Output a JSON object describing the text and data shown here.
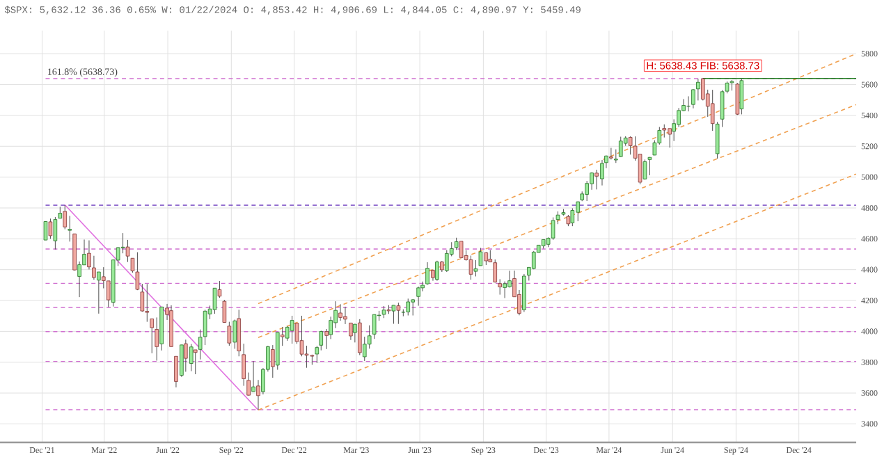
{
  "chart_data": {
    "type": "candlestick",
    "title": "$SPX: 5,632.12 36.36 0.65% W: 01/22/2024 O: 4,853.42 H: 4,906.69 L: 4,844.05 C: 4,890.97 Y: 5459.49",
    "xlim": [
      "2021-10-01",
      "2025-02-22"
    ],
    "xticks": [
      {
        "value": "2021-12-01",
        "label": "Dec '21"
      },
      {
        "value": "2022-03-01",
        "label": "Mar '22"
      },
      {
        "value": "2022-06-01",
        "label": "Jun '22"
      },
      {
        "value": "2022-09-01",
        "label": "Sep '22"
      },
      {
        "value": "2022-12-01",
        "label": "Dec '22"
      },
      {
        "value": "2023-03-01",
        "label": "Mar '23"
      },
      {
        "value": "2023-06-01",
        "label": "Jun '23"
      },
      {
        "value": "2023-09-01",
        "label": "Sep '23"
      },
      {
        "value": "2023-12-01",
        "label": "Dec '23"
      },
      {
        "value": "2024-03-01",
        "label": "Mar '24"
      },
      {
        "value": "2024-06-01",
        "label": "Jun '24"
      },
      {
        "value": "2024-09-01",
        "label": "Sep '24"
      },
      {
        "value": "2024-12-01",
        "label": "Dec '24"
      }
    ],
    "ylim": [
      3280,
      5950
    ],
    "yticks": [
      3400,
      3600,
      3800,
      4000,
      4200,
      4400,
      4600,
      4800,
      5000,
      5200,
      5400,
      5600,
      5800
    ],
    "grid": true,
    "x": [
      "2021-12-06",
      "2021-12-13",
      "2021-12-20",
      "2021-12-27",
      "2022-01-03",
      "2022-01-10",
      "2022-01-17",
      "2022-01-24",
      "2022-01-31",
      "2022-02-07",
      "2022-02-14",
      "2022-02-21",
      "2022-02-28",
      "2022-03-07",
      "2022-03-14",
      "2022-03-21",
      "2022-03-28",
      "2022-04-04",
      "2022-04-11",
      "2022-04-18",
      "2022-04-25",
      "2022-05-02",
      "2022-05-09",
      "2022-05-16",
      "2022-05-23",
      "2022-05-31",
      "2022-06-06",
      "2022-06-13",
      "2022-06-21",
      "2022-06-27",
      "2022-07-05",
      "2022-07-11",
      "2022-07-18",
      "2022-07-25",
      "2022-08-01",
      "2022-08-08",
      "2022-08-15",
      "2022-08-22",
      "2022-08-29",
      "2022-09-06",
      "2022-09-12",
      "2022-09-19",
      "2022-09-26",
      "2022-10-03",
      "2022-10-10",
      "2022-10-17",
      "2022-10-24",
      "2022-10-31",
      "2022-11-07",
      "2022-11-14",
      "2022-11-21",
      "2022-11-28",
      "2022-12-05",
      "2022-12-12",
      "2022-12-19",
      "2022-12-27",
      "2023-01-03",
      "2023-01-09",
      "2023-01-17",
      "2023-01-23",
      "2023-01-30",
      "2023-02-06",
      "2023-02-13",
      "2023-02-21",
      "2023-02-27",
      "2023-03-06",
      "2023-03-13",
      "2023-03-20",
      "2023-03-27",
      "2023-04-03",
      "2023-04-10",
      "2023-04-17",
      "2023-04-24",
      "2023-05-01",
      "2023-05-08",
      "2023-05-15",
      "2023-05-22",
      "2023-05-30",
      "2023-06-05",
      "2023-06-12",
      "2023-06-20",
      "2023-06-26",
      "2023-07-03",
      "2023-07-10",
      "2023-07-17",
      "2023-07-24",
      "2023-07-31",
      "2023-08-07",
      "2023-08-14",
      "2023-08-21",
      "2023-08-28",
      "2023-09-05",
      "2023-09-11",
      "2023-09-18",
      "2023-09-25",
      "2023-10-02",
      "2023-10-09",
      "2023-10-16",
      "2023-10-23",
      "2023-10-30",
      "2023-11-06",
      "2023-11-13",
      "2023-11-20",
      "2023-11-27",
      "2023-12-04",
      "2023-12-11",
      "2023-12-18",
      "2023-12-26",
      "2024-01-02",
      "2024-01-08",
      "2024-01-16",
      "2024-01-22",
      "2024-01-29",
      "2024-02-05",
      "2024-02-12",
      "2024-02-20",
      "2024-02-26",
      "2024-03-04",
      "2024-03-11",
      "2024-03-18",
      "2024-03-25",
      "2024-04-01",
      "2024-04-08",
      "2024-04-15",
      "2024-04-22",
      "2024-04-29",
      "2024-05-06",
      "2024-05-13",
      "2024-05-20",
      "2024-05-28",
      "2024-06-03",
      "2024-06-10",
      "2024-06-17",
      "2024-06-24",
      "2024-07-01",
      "2024-07-08",
      "2024-07-15",
      "2024-07-22",
      "2024-07-29",
      "2024-08-05",
      "2024-08-12",
      "2024-08-19",
      "2024-08-26",
      "2024-09-03",
      "2024-09-09"
    ],
    "ohlc": [
      [
        4592,
        4713,
        4592,
        4712
      ],
      [
        4710,
        4731,
        4600,
        4620
      ],
      [
        4587,
        4741,
        4531,
        4725
      ],
      [
        4733,
        4808,
        4733,
        4766
      ],
      [
        4778,
        4818,
        4662,
        4677
      ],
      [
        4655,
        4749,
        4582,
        4662
      ],
      [
        4632,
        4632,
        4395,
        4398
      ],
      [
        4356,
        4453,
        4222,
        4432
      ],
      [
        4431,
        4595,
        4431,
        4500
      ],
      [
        4506,
        4590,
        4401,
        4418
      ],
      [
        4412,
        4490,
        4335,
        4349
      ],
      [
        4332,
        4385,
        4115,
        4385
      ],
      [
        4354,
        4416,
        4279,
        4329
      ],
      [
        4327,
        4327,
        4157,
        4204
      ],
      [
        4188,
        4465,
        4161,
        4463
      ],
      [
        4462,
        4546,
        4424,
        4543
      ],
      [
        4541,
        4637,
        4506,
        4546
      ],
      [
        4547,
        4593,
        4450,
        4488
      ],
      [
        4474,
        4474,
        4381,
        4392
      ],
      [
        4385,
        4513,
        4267,
        4272
      ],
      [
        4255,
        4308,
        4128,
        4132
      ],
      [
        4130,
        4307,
        4062,
        4123
      ],
      [
        4081,
        4082,
        3858,
        4024
      ],
      [
        4013,
        4090,
        3810,
        3901
      ],
      [
        3919,
        4158,
        3876,
        4158
      ],
      [
        4151,
        4178,
        4074,
        4109
      ],
      [
        4134,
        4169,
        3900,
        3901
      ],
      [
        3838,
        3838,
        3637,
        3675
      ],
      [
        3715,
        3913,
        3705,
        3912
      ],
      [
        3920,
        3946,
        3738,
        3825
      ],
      [
        3792,
        3918,
        3742,
        3899
      ],
      [
        3880,
        3880,
        3722,
        3863
      ],
      [
        3883,
        4012,
        3818,
        3962
      ],
      [
        3966,
        4140,
        3911,
        4131
      ],
      [
        4113,
        4167,
        4079,
        4145
      ],
      [
        4141,
        4280,
        4114,
        4280
      ],
      [
        4270,
        4326,
        4218,
        4228
      ],
      [
        4195,
        4204,
        4057,
        4058
      ],
      [
        4034,
        4062,
        3907,
        3924
      ],
      [
        3930,
        4076,
        3887,
        4068
      ],
      [
        4083,
        4140,
        3838,
        3873
      ],
      [
        3849,
        3920,
        3647,
        3693
      ],
      [
        3682,
        3733,
        3584,
        3586
      ],
      [
        3610,
        3807,
        3610,
        3640
      ],
      [
        3646,
        3685,
        3492,
        3583
      ],
      [
        3609,
        3762,
        3591,
        3753
      ],
      [
        3753,
        3906,
        3739,
        3901
      ],
      [
        3882,
        3911,
        3699,
        3771
      ],
      [
        3781,
        3993,
        3751,
        3993
      ],
      [
        3977,
        4028,
        3906,
        3965
      ],
      [
        3956,
        4034,
        3939,
        4027
      ],
      [
        4005,
        4101,
        3920,
        4071
      ],
      [
        4053,
        4053,
        3919,
        3934
      ],
      [
        3940,
        4101,
        3838,
        3852
      ],
      [
        3853,
        3907,
        3764,
        3845
      ],
      [
        3844,
        3849,
        3783,
        3839
      ],
      [
        3853,
        3906,
        3795,
        3895
      ],
      [
        3910,
        4004,
        3877,
        3999
      ],
      [
        3999,
        4015,
        3885,
        3973
      ],
      [
        3979,
        4095,
        3950,
        4071
      ],
      [
        4056,
        4195,
        4021,
        4136
      ],
      [
        4119,
        4176,
        4069,
        4090
      ],
      [
        4096,
        4160,
        4047,
        4079
      ],
      [
        4054,
        4054,
        3944,
        3970
      ],
      [
        3992,
        4048,
        3928,
        4046
      ],
      [
        4055,
        4079,
        3846,
        3862
      ],
      [
        3835,
        3965,
        3808,
        3917
      ],
      [
        3917,
        4039,
        3888,
        3971
      ],
      [
        3982,
        4110,
        3951,
        4109
      ],
      [
        4102,
        4133,
        4069,
        4105
      ],
      [
        4110,
        4164,
        4086,
        4138
      ],
      [
        4140,
        4170,
        4113,
        4133
      ],
      [
        4132,
        4170,
        4049,
        4169
      ],
      [
        4166,
        4186,
        4048,
        4136
      ],
      [
        4124,
        4143,
        4098,
        4124
      ],
      [
        4126,
        4212,
        4103,
        4191
      ],
      [
        4190,
        4209,
        4103,
        4205
      ],
      [
        4226,
        4290,
        4166,
        4282
      ],
      [
        4282,
        4323,
        4260,
        4299
      ],
      [
        4308,
        4448,
        4302,
        4409
      ],
      [
        4396,
        4400,
        4328,
        4348
      ],
      [
        4337,
        4458,
        4328,
        4450
      ],
      [
        4450,
        4456,
        4385,
        4399
      ],
      [
        4394,
        4527,
        4385,
        4505
      ],
      [
        4500,
        4578,
        4487,
        4536
      ],
      [
        4544,
        4607,
        4528,
        4582
      ],
      [
        4584,
        4584,
        4474,
        4478
      ],
      [
        4491,
        4527,
        4458,
        4464
      ],
      [
        4464,
        4491,
        4335,
        4370
      ],
      [
        4389,
        4462,
        4356,
        4406
      ],
      [
        4426,
        4541,
        4426,
        4516
      ],
      [
        4510,
        4514,
        4430,
        4457
      ],
      [
        4468,
        4527,
        4449,
        4450
      ],
      [
        4445,
        4466,
        4316,
        4320
      ],
      [
        4310,
        4338,
        4238,
        4288
      ],
      [
        4284,
        4324,
        4216,
        4309
      ],
      [
        4289,
        4393,
        4284,
        4328
      ],
      [
        4342,
        4394,
        4223,
        4224
      ],
      [
        4239,
        4268,
        4104,
        4117
      ],
      [
        4140,
        4372,
        4126,
        4358
      ],
      [
        4364,
        4415,
        4329,
        4415
      ],
      [
        4407,
        4521,
        4402,
        4514
      ],
      [
        4511,
        4560,
        4511,
        4559
      ],
      [
        4554,
        4595,
        4537,
        4595
      ],
      [
        4564,
        4609,
        4546,
        4604
      ],
      [
        4605,
        4739,
        4593,
        4719
      ],
      [
        4725,
        4778,
        4695,
        4754
      ],
      [
        4759,
        4793,
        4751,
        4770
      ],
      [
        4745,
        4755,
        4682,
        4697
      ],
      [
        4703,
        4798,
        4682,
        4784
      ],
      [
        4772,
        4842,
        4714,
        4840
      ],
      [
        4853,
        4907,
        4844,
        4891
      ],
      [
        4888,
        4975,
        4845,
        4959
      ],
      [
        4957,
        5031,
        4918,
        5027
      ],
      [
        5026,
        5048,
        4920,
        5006
      ],
      [
        4989,
        5111,
        4946,
        5089
      ],
      [
        5094,
        5140,
        5058,
        5137
      ],
      [
        5131,
        5190,
        5114,
        5124
      ],
      [
        5111,
        5180,
        5092,
        5117
      ],
      [
        5133,
        5262,
        5130,
        5234
      ],
      [
        5219,
        5265,
        5203,
        5254
      ],
      [
        5258,
        5264,
        5146,
        5204
      ],
      [
        5201,
        5264,
        5107,
        5123
      ],
      [
        5149,
        5150,
        4953,
        4967
      ],
      [
        4988,
        5114,
        4984,
        5100
      ],
      [
        5114,
        5130,
        5012,
        5128
      ],
      [
        5143,
        5239,
        5142,
        5223
      ],
      [
        5221,
        5325,
        5211,
        5303
      ],
      [
        5316,
        5342,
        5257,
        5305
      ],
      [
        5315,
        5315,
        5191,
        5278
      ],
      [
        5297,
        5375,
        5234,
        5347
      ],
      [
        5341,
        5448,
        5325,
        5432
      ],
      [
        5431,
        5506,
        5428,
        5465
      ],
      [
        5460,
        5524,
        5426,
        5460
      ],
      [
        5471,
        5570,
        5446,
        5567
      ],
      [
        5572,
        5638,
        5497,
        5615
      ],
      [
        5638,
        5638,
        5497,
        5505
      ],
      [
        5540,
        5567,
        5391,
        5459
      ],
      [
        5477,
        5566,
        5300,
        5347
      ],
      [
        5152,
        5358,
        5120,
        5344
      ],
      [
        5376,
        5564,
        5325,
        5554
      ],
      [
        5557,
        5620,
        5543,
        5610
      ],
      [
        5612,
        5630,
        5561,
        5620
      ],
      [
        5603,
        5610,
        5403,
        5408
      ],
      [
        5442,
        5636,
        5407,
        5626
      ]
    ],
    "series": [
      {
        "type": "line",
        "x": [
          "2022-01-03",
          "2022-10-10"
        ],
        "values": [
          4820,
          3490
        ],
        "color": "#e070e0",
        "line_style": "solid"
      },
      {
        "type": "line",
        "x": [
          "2022-10-10",
          "2025-02-22"
        ],
        "values": [
          3490,
          5020
        ],
        "color": "#f0a050",
        "line_style": "dashed"
      },
      {
        "type": "line",
        "x": [
          "2022-10-10",
          "2025-02-22"
        ],
        "values": [
          3960,
          5470
        ],
        "color": "#f0a050",
        "line_style": "dashed"
      },
      {
        "type": "line",
        "x": [
          "2022-10-10",
          "2025-02-22"
        ],
        "values": [
          4180,
          5800
        ],
        "color": "#f0a050",
        "line_style": "dashed"
      },
      {
        "type": "line",
        "x": [
          "2024-07-15",
          "2025-02-22"
        ],
        "values": [
          5640,
          5640
        ],
        "color": "#208020",
        "line_style": "solid"
      }
    ],
    "ref_lines": [
      {
        "axis": "y",
        "value": 5638.73,
        "label": "161.8% (5638.73)",
        "color": "#d070d0",
        "line_style": "dashed"
      },
      {
        "axis": "y",
        "value": 4818,
        "color": "#7040c0",
        "line_style": "dashed"
      },
      {
        "axis": "y",
        "value": 4534,
        "color": "#d070d0",
        "line_style": "dashed"
      },
      {
        "axis": "y",
        "value": 4311,
        "color": "#d070d0",
        "line_style": "dashed"
      },
      {
        "axis": "y",
        "value": 4155,
        "color": "#d070d0",
        "line_style": "dashed"
      },
      {
        "axis": "y",
        "value": 3998,
        "color": "#d070d0",
        "line_style": "dashed"
      },
      {
        "axis": "y",
        "value": 3805,
        "color": "#d070d0",
        "line_style": "dashed"
      },
      {
        "axis": "y",
        "value": 3492,
        "color": "#d070d0",
        "line_style": "dashed"
      }
    ],
    "annotations": [
      {
        "text": "H: 5638.43  FIB: 5638.73",
        "x": "2024-07-15",
        "y": 5638.43
      }
    ]
  }
}
